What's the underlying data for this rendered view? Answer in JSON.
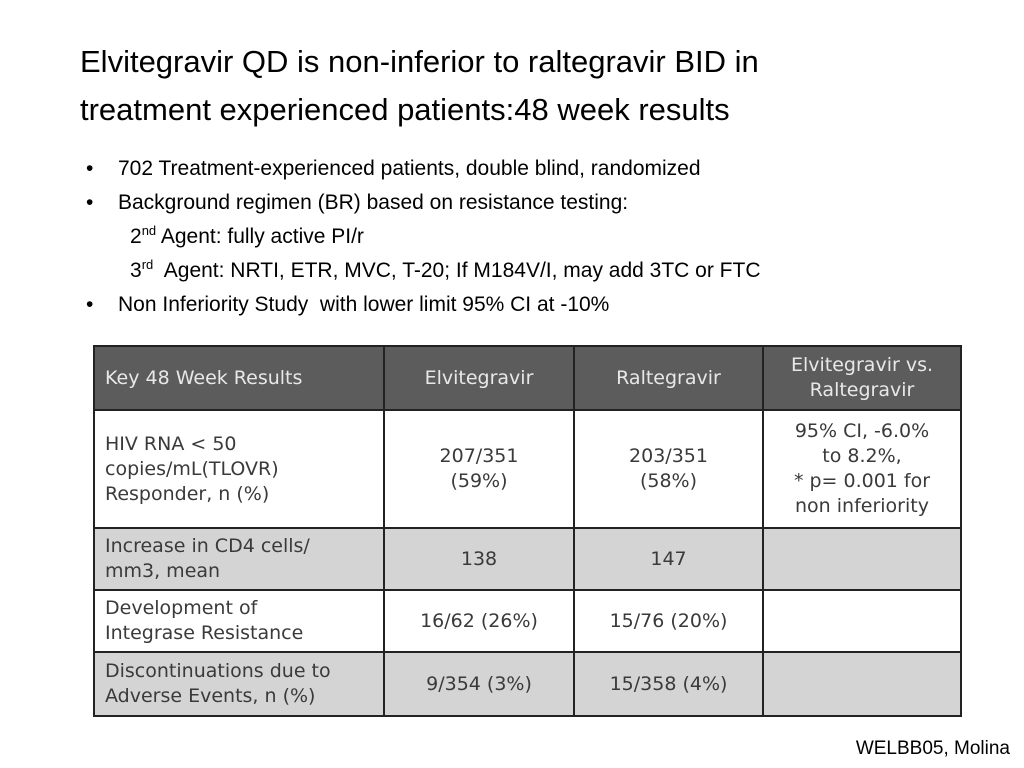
{
  "title_line1": "Elvitegravir QD is non-inferior to raltegravir BID in",
  "title_line2": "treatment experienced patients:48 week results",
  "bullets": {
    "b1": "702 Treatment-experienced patients, double blind, randomized",
    "b2": "Background regimen (BR) based on resistance testing:",
    "sub1_num": "2",
    "sub1_sup": "nd",
    "sub1_text": " Agent: fully active PI/r",
    "sub2_num": "3",
    "sub2_sup": "rd",
    "sub2_text": "  Agent: NRTI, ETR, MVC, T-20; If M184V/I, may add 3TC or FTC",
    "b3": "Non Inferiority Study  with lower limit 95% CI at -10%",
    "marker": "•"
  },
  "table": {
    "headers": {
      "h0": "Key 48 Week Results",
      "h1": "Elvitegravir",
      "h2": "Raltegravir",
      "h3a": "Elvitegravir vs.",
      "h3b": "Raltegravir"
    },
    "r1": {
      "c0a": "HIV RNA < 50",
      "c0b": "copies/mL(TLOVR)",
      "c0c": "Responder, n (%)",
      "c1a": "207/351",
      "c1b": "(59%)",
      "c2a": "203/351",
      "c2b": "(58%)",
      "c3a": "95% CI, -6.0%",
      "c3b": "to 8.2%,",
      "c3c": "* p= 0.001 for",
      "c3d": "non inferiority"
    },
    "r2": {
      "c0a": "Increase in CD4 cells/",
      "c0b": "mm3, mean",
      "c1": "138",
      "c2": "147",
      "c3": ""
    },
    "r3": {
      "c0a": "Development of",
      "c0b": "Integrase Resistance",
      "c1": "16/62 (26%)",
      "c2": "15/76 (20%)",
      "c3": ""
    },
    "r4": {
      "c0a": "Discontinuations due to",
      "c0b": "Adverse Events, n (%)",
      "c1": "9/354 (3%)",
      "c2": "15/358 (4%)",
      "c3": ""
    }
  },
  "footer": "WELBB05, Molina"
}
